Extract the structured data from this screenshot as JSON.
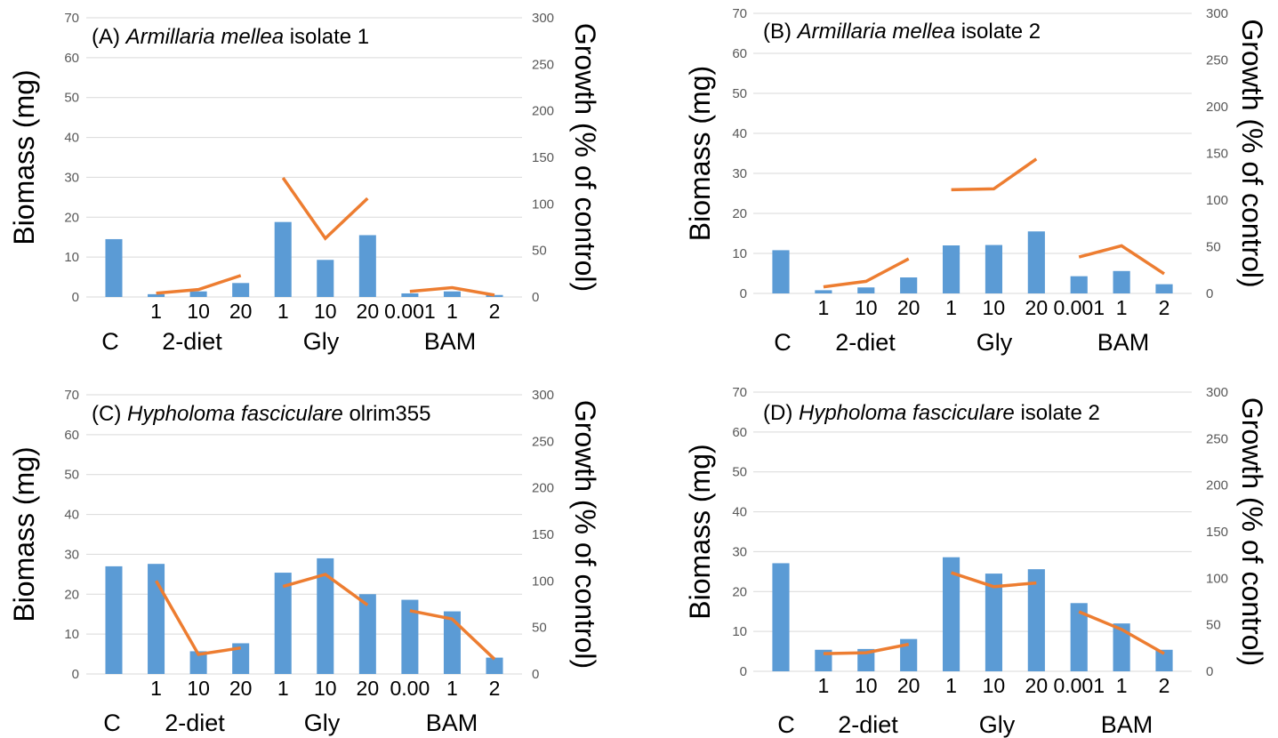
{
  "colors": {
    "bar": "#5b9bd5",
    "line": "#ed7d31"
  },
  "chart_data": [
    {
      "type": "bar",
      "title_prefix": "(A)",
      "title_species": "Armillaria mellea",
      "title_suffix": "isolate 1",
      "ylabel": "Biomass (mg)",
      "y2label": "Growth (% of control)",
      "ylim": [
        0,
        70
      ],
      "yticks": [
        "0",
        "10",
        "20",
        "30",
        "40",
        "50",
        "60",
        "70"
      ],
      "y2lim": [
        0,
        300
      ],
      "y2ticks": [
        "0",
        "50",
        "100",
        "150",
        "200",
        "250",
        "300"
      ],
      "categories": [
        "",
        "1",
        "10",
        "20",
        "1",
        "10",
        "20",
        "0.001",
        "1",
        "2"
      ],
      "groups": [
        "C",
        "2-diet",
        "Gly",
        "BAM"
      ],
      "series": [
        {
          "type": "bar",
          "axis": "left",
          "values": [
            14.5,
            0.7,
            1.4,
            3.5,
            18.8,
            9.3,
            15.5,
            0.9,
            1.4,
            0.5
          ]
        },
        {
          "type": "line",
          "axis": "right",
          "segments": [
            [
              [
                1,
                4
              ],
              [
                2,
                8
              ],
              [
                3,
                23
              ]
            ],
            [
              [
                4,
                128
              ],
              [
                5,
                63
              ],
              [
                6,
                106
              ]
            ],
            [
              [
                7,
                6
              ],
              [
                8,
                10
              ],
              [
                9,
                2
              ]
            ]
          ]
        }
      ]
    },
    {
      "type": "bar",
      "title_prefix": "(B)",
      "title_species": "Armillaria mellea",
      "title_suffix": "isolate 2",
      "ylabel": "Biomass (mg)",
      "y2label": "Growth (% of control)",
      "ylim": [
        0,
        70
      ],
      "yticks": [
        "0",
        "10",
        "20",
        "30",
        "40",
        "50",
        "60",
        "70"
      ],
      "y2lim": [
        0,
        300
      ],
      "y2ticks": [
        "0",
        "50",
        "100",
        "150",
        "200",
        "250",
        "300"
      ],
      "categories": [
        "",
        "1",
        "10",
        "20",
        "1",
        "10",
        "20",
        "0.001",
        "1",
        "2"
      ],
      "groups": [
        "C",
        "2-diet",
        "Gly",
        "BAM"
      ],
      "series": [
        {
          "type": "bar",
          "axis": "left",
          "values": [
            10.8,
            0.8,
            1.5,
            4.0,
            12.0,
            12.1,
            15.5,
            4.3,
            5.6,
            2.3
          ]
        },
        {
          "type": "line",
          "axis": "right",
          "segments": [
            [
              [
                1,
                7
              ],
              [
                2,
                13
              ],
              [
                3,
                37
              ]
            ],
            [
              [
                4,
                111
              ],
              [
                5,
                112
              ],
              [
                6,
                144
              ]
            ],
            [
              [
                7,
                39
              ],
              [
                8,
                51
              ],
              [
                9,
                21
              ]
            ]
          ]
        }
      ]
    },
    {
      "type": "bar",
      "title_prefix": "(C)",
      "title_species": "Hypholoma fasciculare",
      "title_suffix": "olrim355",
      "ylabel": "Biomass (mg)",
      "y2label": "Growth (% of control)",
      "ylim": [
        0,
        70
      ],
      "yticks": [
        "0",
        "10",
        "20",
        "30",
        "40",
        "50",
        "60",
        "70"
      ],
      "y2lim": [
        0,
        300
      ],
      "y2ticks": [
        "0",
        "50",
        "100",
        "150",
        "200",
        "250",
        "300"
      ],
      "categories": [
        "",
        "1",
        "10",
        "20",
        "1",
        "10",
        "20",
        "0.00",
        "1",
        "2"
      ],
      "groups": [
        "C",
        "2-diet",
        "Gly",
        "BAM"
      ],
      "series": [
        {
          "type": "bar",
          "axis": "left",
          "values": [
            27.0,
            27.6,
            5.7,
            7.7,
            25.4,
            29.0,
            20.0,
            18.6,
            15.7,
            4.1
          ]
        },
        {
          "type": "line",
          "axis": "right",
          "segments": [
            [
              [
                1,
                100
              ],
              [
                2,
                21
              ],
              [
                3,
                28
              ]
            ],
            [
              [
                4,
                94
              ],
              [
                5,
                107
              ],
              [
                6,
                74
              ]
            ],
            [
              [
                7,
                68
              ],
              [
                8,
                59
              ],
              [
                9,
                16
              ]
            ]
          ]
        }
      ]
    },
    {
      "type": "bar",
      "title_prefix": "(D)",
      "title_species": "Hypholoma fasciculare",
      "title_suffix": "isolate 2",
      "ylabel": "Biomass (mg)",
      "y2label": "Growth (% of control)",
      "ylim": [
        0,
        70
      ],
      "yticks": [
        "0",
        "10",
        "20",
        "30",
        "40",
        "50",
        "60",
        "70"
      ],
      "y2lim": [
        0,
        300
      ],
      "y2ticks": [
        "0",
        "50",
        "100",
        "150",
        "200",
        "250",
        "300"
      ],
      "categories": [
        "",
        "1",
        "10",
        "20",
        "1",
        "10",
        "20",
        "0.001",
        "1",
        "2"
      ],
      "groups": [
        "C",
        "2-diet",
        "Gly",
        "BAM"
      ],
      "series": [
        {
          "type": "bar",
          "axis": "left",
          "values": [
            27.1,
            5.4,
            5.6,
            8.1,
            28.6,
            24.5,
            25.6,
            17.1,
            12.0,
            5.4
          ]
        },
        {
          "type": "line",
          "axis": "right",
          "segments": [
            [
              [
                1,
                19
              ],
              [
                2,
                20
              ],
              [
                3,
                29
              ]
            ],
            [
              [
                4,
                106
              ],
              [
                5,
                91
              ],
              [
                6,
                95
              ]
            ],
            [
              [
                7,
                64
              ],
              [
                8,
                45
              ],
              [
                9,
                19
              ]
            ]
          ]
        }
      ]
    }
  ]
}
